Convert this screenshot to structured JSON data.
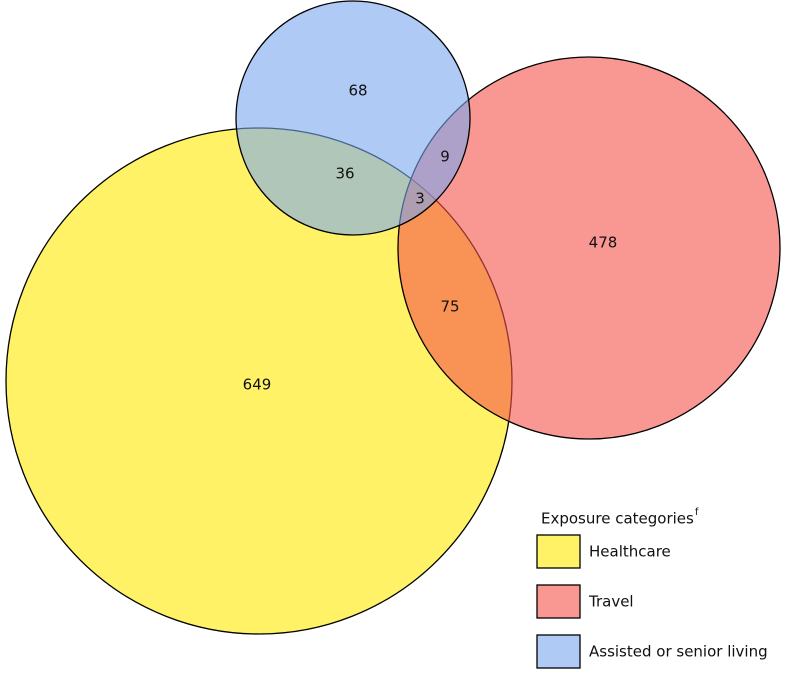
{
  "chart_data": {
    "type": "venn",
    "legend_title": "Exposure categories",
    "legend_title_superscript": "f",
    "sets": [
      {
        "name": "Healthcare",
        "color": "#ffe900"
      },
      {
        "name": "Travel",
        "color": "#f5524a"
      },
      {
        "name": "Assisted or senior living",
        "color": "#7aa8ee"
      }
    ],
    "regions": [
      {
        "sets": [
          "Healthcare"
        ],
        "value": 649
      },
      {
        "sets": [
          "Travel"
        ],
        "value": 478
      },
      {
        "sets": [
          "Assisted or senior living"
        ],
        "value": 68
      },
      {
        "sets": [
          "Healthcare",
          "Assisted or senior living"
        ],
        "value": 36
      },
      {
        "sets": [
          "Travel",
          "Assisted or senior living"
        ],
        "value": 9
      },
      {
        "sets": [
          "Healthcare",
          "Travel"
        ],
        "value": 75
      },
      {
        "sets": [
          "Healthcare",
          "Travel",
          "Assisted or senior living"
        ],
        "value": 3
      }
    ]
  }
}
